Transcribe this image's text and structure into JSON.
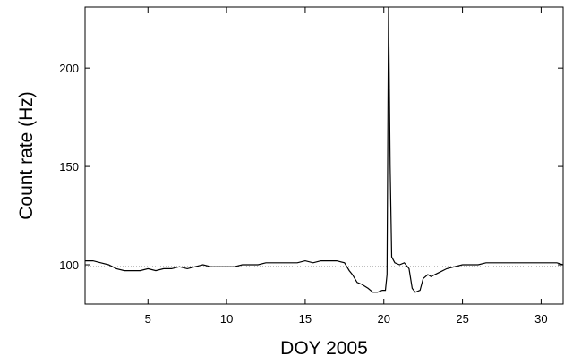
{
  "chart_data": {
    "type": "line",
    "x_label": "DOY 2005",
    "y_label": "Count rate (Hz)",
    "xlim": [
      1,
      31.4
    ],
    "ylim": [
      80,
      231
    ],
    "xticks": [
      5,
      10,
      15,
      20,
      25,
      30
    ],
    "yticks": [
      100,
      150,
      200
    ],
    "reference_line": 99,
    "series": [
      {
        "color": "#000000",
        "x": [
          1,
          1.5,
          2,
          2.5,
          3,
          3.5,
          4,
          4.5,
          5,
          5.5,
          6,
          6.5,
          7,
          7.5,
          8,
          8.5,
          9,
          9.5,
          10,
          10.5,
          11,
          11.5,
          12,
          12.5,
          13,
          13.5,
          14,
          14.5,
          15,
          15.5,
          16,
          16.5,
          17,
          17.5,
          17.8,
          18,
          18.3,
          18.6,
          19,
          19.3,
          19.6,
          19.9,
          20.1,
          20.2,
          20.3,
          20.4,
          20.5,
          20.7,
          21,
          21.3,
          21.6,
          21.8,
          22,
          22.3,
          22.5,
          22.8,
          23,
          23.5,
          24,
          24.5,
          25,
          25.5,
          26,
          26.5,
          27,
          27.5,
          28,
          28.5,
          29,
          29.5,
          30,
          30.5,
          31,
          31.4
        ],
        "values": [
          102,
          102,
          101,
          100,
          98,
          97,
          97,
          97,
          98,
          97,
          98,
          98,
          99,
          98,
          99,
          100,
          99,
          99,
          99,
          99,
          100,
          100,
          100,
          101,
          101,
          101,
          101,
          101,
          102,
          101,
          102,
          102,
          102,
          101,
          97,
          95,
          91,
          90,
          88,
          86,
          86,
          87,
          87,
          95,
          231,
          150,
          104,
          101,
          100,
          101,
          98,
          88,
          86,
          87,
          93,
          95,
          94,
          96,
          98,
          99,
          100,
          100,
          100,
          101,
          101,
          101,
          101,
          101,
          101,
          101,
          101,
          101,
          101,
          100
        ]
      }
    ]
  }
}
